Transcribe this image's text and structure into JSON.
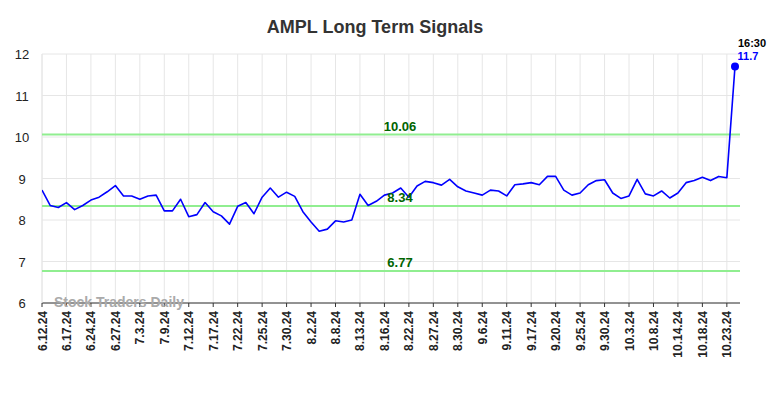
{
  "chart_data": {
    "type": "line",
    "title": "AMPL Long Term Signals",
    "watermark": "Stock Traders Daily",
    "annotations": [
      "16:30"
    ],
    "categories": [
      "6.12.24",
      null,
      null,
      "6.17.24",
      null,
      null,
      "6.24.24",
      null,
      null,
      "6.27.24",
      null,
      null,
      "7.3.24",
      null,
      null,
      "7.9.24",
      null,
      null,
      "7.12.24",
      null,
      null,
      "7.17.24",
      null,
      null,
      "7.22.24",
      null,
      null,
      "7.25.24",
      null,
      null,
      "7.30.24",
      null,
      null,
      "8.2.24",
      null,
      null,
      "8.8.24",
      null,
      null,
      "8.13.24",
      null,
      null,
      "8.16.24",
      null,
      null,
      "8.22.24",
      null,
      null,
      "8.27.24",
      null,
      null,
      "8.30.24",
      null,
      null,
      "9.6.24",
      null,
      null,
      "9.11.24",
      null,
      null,
      "9.17.24",
      null,
      null,
      "9.20.24",
      null,
      null,
      "9.25.24",
      null,
      null,
      "9.30.24",
      null,
      null,
      "10.3.24",
      null,
      null,
      "10.8.24",
      null,
      null,
      "10.14.24",
      null,
      null,
      "10.18.24",
      null,
      null,
      "10.23.24",
      null
    ],
    "series": [
      {
        "name": "AMPL",
        "color": "#0000ff",
        "values": [
          8.72,
          8.35,
          8.3,
          8.42,
          8.25,
          8.35,
          8.48,
          8.55,
          8.68,
          8.83,
          8.58,
          8.58,
          8.5,
          8.58,
          8.6,
          8.22,
          8.22,
          8.5,
          8.08,
          8.13,
          8.42,
          8.2,
          8.1,
          7.9,
          8.33,
          8.42,
          8.15,
          8.55,
          8.77,
          8.55,
          8.67,
          8.57,
          8.2,
          7.95,
          7.73,
          7.78,
          7.98,
          7.95,
          8.0,
          8.62,
          8.35,
          8.45,
          8.6,
          8.65,
          8.77,
          8.55,
          8.82,
          8.93,
          8.9,
          8.84,
          8.98,
          8.8,
          8.7,
          8.65,
          8.6,
          8.72,
          8.7,
          8.58,
          8.85,
          8.87,
          8.9,
          8.85,
          9.05,
          9.05,
          8.72,
          8.6,
          8.65,
          8.85,
          8.95,
          8.97,
          8.65,
          8.52,
          8.58,
          8.98,
          8.63,
          8.58,
          8.7,
          8.53,
          8.65,
          8.9,
          8.95,
          9.03,
          8.95,
          9.05,
          9.02,
          11.7
        ]
      }
    ],
    "reference_lines": [
      10.06,
      8.34,
      6.77
    ],
    "ylim": [
      6,
      12
    ],
    "yticks": [
      6,
      7,
      8,
      9,
      10,
      11,
      12
    ],
    "grid": true
  }
}
